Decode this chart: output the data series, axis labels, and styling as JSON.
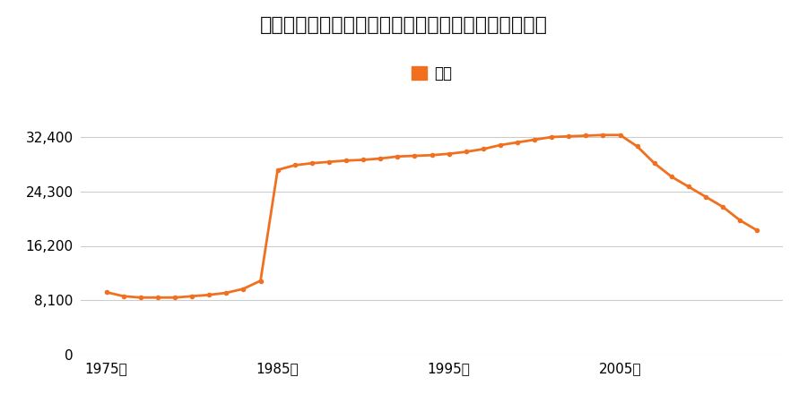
{
  "title": "青森県青森市大字荒川字柴田５番ほか１筆の地価推移",
  "legend_label": "価格",
  "line_color": "#f07020",
  "marker_color": "#f07020",
  "background_color": "#ffffff",
  "grid_color": "#cccccc",
  "yticks": [
    0,
    8100,
    16200,
    24300,
    32400
  ],
  "ytick_labels": [
    "0",
    "8,100",
    "16,200",
    "24,300",
    "32,400"
  ],
  "ylim": [
    0,
    36000
  ],
  "xlim": [
    1973.5,
    2014.5
  ],
  "xtick_years": [
    1975,
    1985,
    1995,
    2005
  ],
  "years": [
    1975,
    1976,
    1977,
    1978,
    1979,
    1980,
    1981,
    1982,
    1983,
    1984,
    1985,
    1986,
    1987,
    1988,
    1989,
    1990,
    1991,
    1992,
    1993,
    1994,
    1995,
    1996,
    1997,
    1998,
    1999,
    2000,
    2001,
    2002,
    2003,
    2004,
    2005,
    2006,
    2007,
    2008,
    2009,
    2010,
    2011,
    2012,
    2013
  ],
  "prices": [
    9300,
    8700,
    8500,
    8500,
    8500,
    8700,
    8900,
    9200,
    9800,
    11000,
    27500,
    28200,
    28500,
    28700,
    28900,
    29000,
    29200,
    29500,
    29600,
    29700,
    29900,
    30200,
    30600,
    31200,
    31600,
    32000,
    32400,
    32500,
    32600,
    32700,
    32700,
    31000,
    28500,
    26500,
    25000,
    23500,
    22000,
    20000,
    18500
  ]
}
